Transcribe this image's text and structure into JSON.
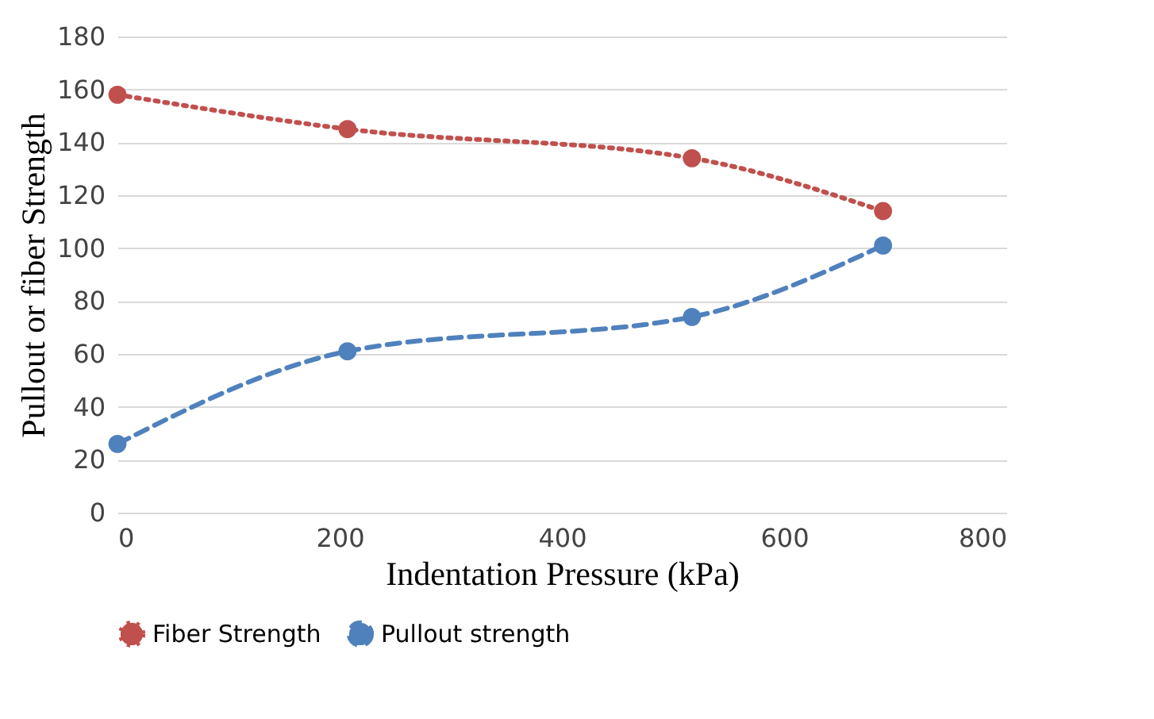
{
  "chart_data": {
    "type": "line",
    "xlabel": "Indentation Pressure (kPa)",
    "ylabel": "Pullout or fiber Strength",
    "xlim": [
      0,
      800
    ],
    "xticks": [
      0,
      200,
      400,
      600,
      800
    ],
    "ylim": [
      0,
      180
    ],
    "yticks": [
      0,
      20,
      40,
      60,
      80,
      100,
      120,
      140,
      160,
      180
    ],
    "grid": "y",
    "legend": "bottom",
    "marker": "circle",
    "series": [
      {
        "name": "Fiber Strength",
        "color": "#c0504d",
        "line_style": "dotted",
        "x": [
          0,
          207,
          517,
          689
        ],
        "values": [
          158,
          145,
          134,
          114
        ]
      },
      {
        "name": "Pullout strength",
        "color": "#4f81bd",
        "line_style": "dashed",
        "x": [
          0,
          207,
          517,
          689
        ],
        "values": [
          26,
          61,
          74,
          101
        ]
      }
    ]
  }
}
